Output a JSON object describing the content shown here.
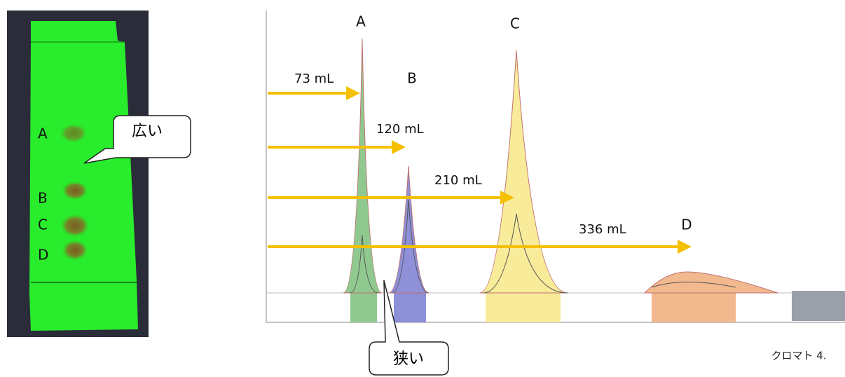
{
  "plate": {
    "spots": [
      "A",
      "B",
      "C",
      "D"
    ],
    "callout": "広い"
  },
  "chromatogram": {
    "peaks": [
      "A",
      "B",
      "C",
      "D"
    ],
    "volumes": [
      "73 mL",
      "120 mL",
      "210 mL",
      "336 mL"
    ],
    "callout": "狭い"
  },
  "caption": "クロマト 4."
}
